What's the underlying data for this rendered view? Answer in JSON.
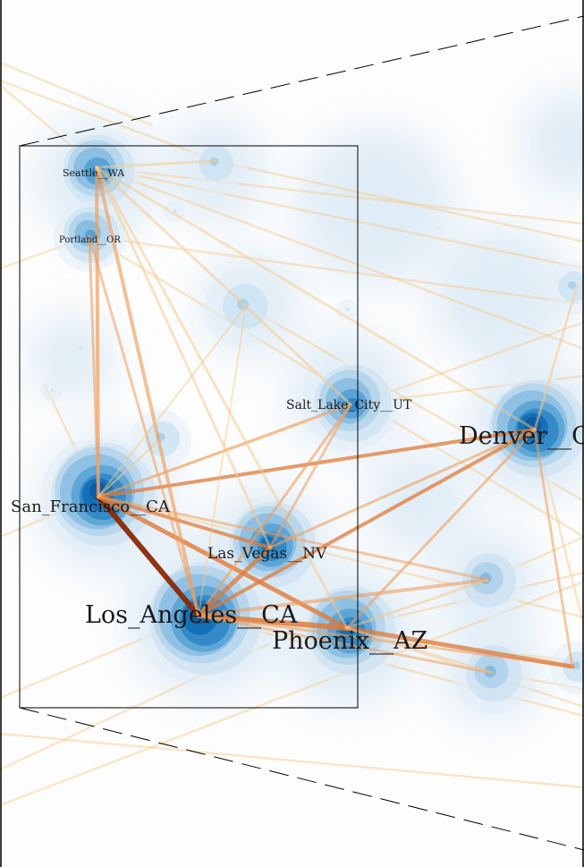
{
  "map": {
    "cities": [
      {
        "id": "seattle",
        "label": "Seattle__WA"
      },
      {
        "id": "portland",
        "label": "Portland__OR"
      },
      {
        "id": "salt-lake-city",
        "label": "Salt_Lake_City__UT"
      },
      {
        "id": "denver",
        "label": "Denver__C"
      },
      {
        "id": "san-francisco",
        "label": "San_Francisco__CA"
      },
      {
        "id": "las-vegas",
        "label": "Las_Vegas__NV"
      },
      {
        "id": "los-angeles",
        "label": "Los_Angeles__CA"
      },
      {
        "id": "phoenix",
        "label": "Phoenix__AZ"
      }
    ],
    "colors": {
      "density_dark": "#0a6fb8",
      "density_mid": "#4aa3d8",
      "density_light": "#cfe3f2",
      "edge_light": "#f7c98a",
      "edge_mid": "#f0a060",
      "edge_strong": "#e07b39",
      "edge_heaviest": "#8b2a06"
    }
  }
}
